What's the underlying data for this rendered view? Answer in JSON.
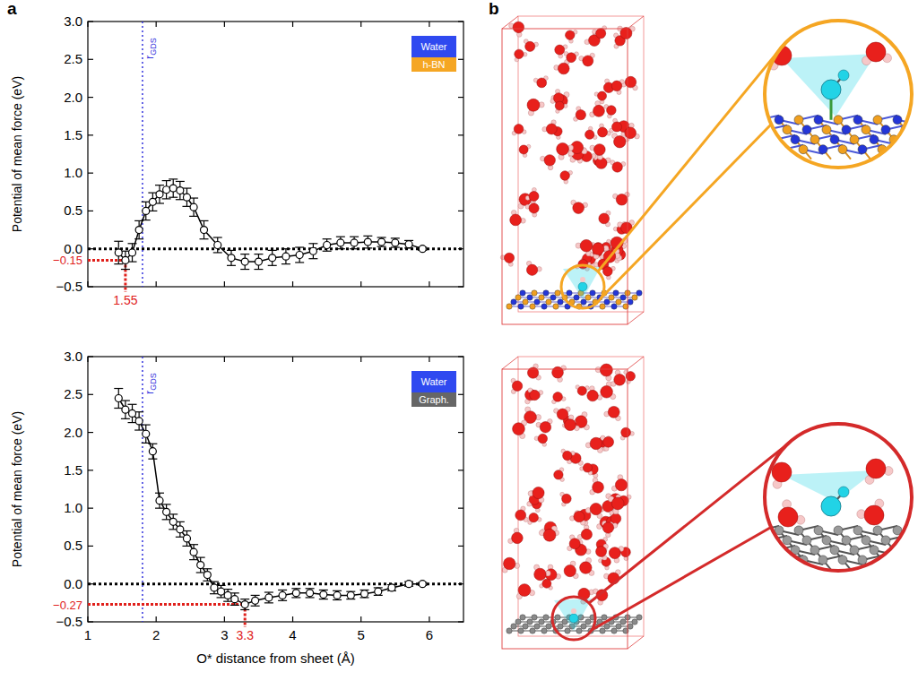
{
  "panel_labels": [
    "a",
    "b"
  ],
  "chart_data": [
    {
      "type": "line",
      "color": "#000000",
      "marker": "circle",
      "line_style": "solid",
      "y_label": "Potential of mean force (eV)",
      "xlim": [
        1,
        6.5
      ],
      "xticks": [
        1,
        2,
        3,
        4,
        5,
        6
      ],
      "ylim": [
        -0.5,
        3.0
      ],
      "yticks": [
        {
          "value": -0.5,
          "label": "−0.5"
        },
        {
          "value": 0,
          "label": "0.0"
        },
        {
          "value": 0.5,
          "label": "0.5"
        },
        {
          "value": 1.0,
          "label": "1.0"
        },
        {
          "value": 1.5,
          "label": "1.5"
        },
        {
          "value": 2.0,
          "label": "2.0"
        },
        {
          "value": 2.5,
          "label": "2.5"
        },
        {
          "value": 3.0,
          "label": "3.0"
        }
      ],
      "tick_labels": "y",
      "hline": 0,
      "vline": {
        "x": 1.8,
        "label": "r",
        "subscript": "GDS",
        "color": "#3333dd"
      },
      "annotations": [
        {
          "x": 1.55,
          "y": -0.15,
          "x_label": "1.55",
          "y_label": "−0.15",
          "color": "#e0201b"
        }
      ],
      "interface_labels": [
        {
          "text": "Water",
          "color": "#2f49f0"
        },
        {
          "text": "h-BN",
          "color": "#f5a623"
        }
      ],
      "x": [
        1.45,
        1.55,
        1.65,
        1.75,
        1.85,
        1.95,
        2.05,
        2.15,
        2.25,
        2.35,
        2.45,
        2.55,
        2.7,
        2.9,
        3.1,
        3.3,
        3.5,
        3.7,
        3.9,
        4.1,
        4.3,
        4.5,
        4.7,
        4.9,
        5.1,
        5.3,
        5.5,
        5.7,
        5.9
      ],
      "values": [
        -0.05,
        -0.15,
        -0.05,
        0.25,
        0.5,
        0.62,
        0.72,
        0.78,
        0.8,
        0.77,
        0.68,
        0.55,
        0.25,
        0.05,
        -0.12,
        -0.17,
        -0.17,
        -0.12,
        -0.1,
        -0.08,
        -0.03,
        0.05,
        0.08,
        0.08,
        0.09,
        0.09,
        0.08,
        0.06,
        0.0
      ],
      "errors": [
        0.15,
        0.12,
        0.12,
        0.12,
        0.12,
        0.12,
        0.12,
        0.12,
        0.12,
        0.12,
        0.12,
        0.12,
        0.12,
        0.1,
        0.1,
        0.1,
        0.1,
        0.1,
        0.1,
        0.1,
        0.1,
        0.08,
        0.08,
        0.08,
        0.08,
        0.06,
        0.06,
        0.05,
        0.02
      ]
    },
    {
      "type": "line",
      "color": "#000000",
      "marker": "circle",
      "line_style": "solid",
      "y_label": "Potential of mean force (eV)",
      "x_label": "O* distance from sheet (Å)",
      "xlim": [
        1,
        6.5
      ],
      "xticks": [
        1,
        2,
        3,
        4,
        5,
        6
      ],
      "ylim": [
        -0.5,
        3.0
      ],
      "yticks": [
        {
          "value": -0.5,
          "label": "−0.5"
        },
        {
          "value": 0,
          "label": "0.0"
        },
        {
          "value": 0.5,
          "label": "0.5"
        },
        {
          "value": 1.0,
          "label": "1.0"
        },
        {
          "value": 1.5,
          "label": "1.5"
        },
        {
          "value": 2.0,
          "label": "2.0"
        },
        {
          "value": 2.5,
          "label": "2.5"
        },
        {
          "value": 3.0,
          "label": "3.0"
        }
      ],
      "tick_labels": true,
      "hline": 0,
      "vline": {
        "x": 1.8,
        "label": "r",
        "subscript": "GDS",
        "color": "#3333dd"
      },
      "annotations": [
        {
          "x": 3.3,
          "y": -0.27,
          "x_label": "3.3",
          "y_label": "−0.27",
          "color": "#e0201b"
        }
      ],
      "interface_labels": [
        {
          "text": "Water",
          "color": "#2f49f0"
        },
        {
          "text": "Graph.",
          "color": "#666666"
        }
      ],
      "x": [
        1.45,
        1.55,
        1.65,
        1.75,
        1.85,
        1.95,
        2.05,
        2.15,
        2.25,
        2.35,
        2.45,
        2.55,
        2.65,
        2.75,
        2.85,
        2.95,
        3.05,
        3.15,
        3.3,
        3.45,
        3.65,
        3.85,
        4.05,
        4.25,
        4.45,
        4.65,
        4.85,
        5.05,
        5.25,
        5.45,
        5.7,
        5.9
      ],
      "values": [
        2.45,
        2.3,
        2.25,
        2.15,
        1.98,
        1.75,
        1.1,
        0.95,
        0.82,
        0.72,
        0.6,
        0.42,
        0.25,
        0.12,
        -0.05,
        -0.1,
        -0.15,
        -0.2,
        -0.27,
        -0.22,
        -0.18,
        -0.15,
        -0.12,
        -0.12,
        -0.14,
        -0.15,
        -0.15,
        -0.13,
        -0.1,
        -0.05,
        0.0,
        0.0
      ],
      "errors": [
        0.13,
        0.12,
        0.12,
        0.12,
        0.12,
        0.1,
        0.1,
        0.1,
        0.1,
        0.1,
        0.1,
        0.1,
        0.1,
        0.08,
        0.08,
        0.08,
        0.08,
        0.08,
        0.07,
        0.07,
        0.07,
        0.07,
        0.06,
        0.06,
        0.06,
        0.06,
        0.05,
        0.05,
        0.05,
        0.04,
        0.03,
        0.02
      ]
    }
  ]
}
